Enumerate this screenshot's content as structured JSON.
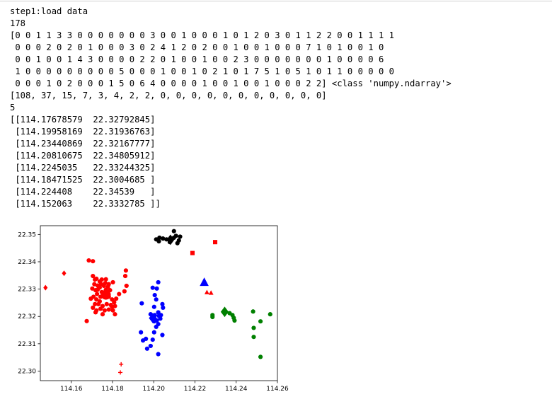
{
  "output": {
    "lines": [
      "step1:load data",
      "178",
      "[0 0 1 1 3 3 0 0 0 0 0 0 0 3 0 0 1 0 0 0 1 0 1 2 0 3 0 1 1 2 2 0 0 1 1 1 1",
      " 0 0 0 2 0 2 0 1 0 0 0 3 0 2 4 1 2 0 2 0 0 1 0 0 1 0 0 0 7 1 0 1 0 0 1 0",
      " 0 0 1 0 0 1 4 3 0 0 0 0 2 2 0 1 0 0 1 0 0 2 3 0 0 0 0 0 0 0 1 0 0 0 0 6",
      " 1 0 0 0 0 0 0 0 0 0 5 0 0 0 1 0 0 1 0 2 1 0 1 7 5 1 0 5 1 0 1 1 0 0 0 0 0",
      " 0 0 0 1 0 2 0 0 0 1 5 0 6 4 0 0 0 0 1 0 0 1 0 0 1 0 0 0 2 2] <class 'numpy.ndarray'>",
      "[108, 37, 15, 7, 3, 4, 2, 2, 0, 0, 0, 0, 0, 0, 0, 0, 0, 0, 0]",
      "5",
      "[[114.17678579  22.32792845]",
      " [114.19958169  22.31936763]",
      " [114.23440869  22.32167777]",
      " [114.20810675  22.34805912]",
      " [114.2245035   22.33244325]",
      " [114.18471525  22.3004685 ]",
      " [114.224408    22.34539   ]",
      " [114.152063    22.3332785 ]]"
    ]
  },
  "chart_data": {
    "type": "scatter",
    "title": "",
    "xlabel": "",
    "ylabel": "",
    "xlim": [
      114.145,
      114.26
    ],
    "ylim": [
      22.2965,
      22.3532
    ],
    "xticks": [
      114.16,
      114.18,
      114.2,
      114.22,
      114.24,
      114.26
    ],
    "xtick_labels": [
      "114.16",
      "114.18",
      "114.20",
      "114.22",
      "114.24",
      "114.26"
    ],
    "yticks": [
      22.3,
      22.31,
      22.32,
      22.33,
      22.34,
      22.35
    ],
    "ytick_labels": [
      "22.30",
      "22.31",
      "22.32",
      "22.33",
      "22.34",
      "22.35"
    ],
    "grid": false,
    "legend": "none",
    "series": [
      {
        "color": "#ff0000",
        "marker": "circle",
        "points": [
          [
            114.1685,
            22.3405
          ],
          [
            114.1705,
            22.3402
          ],
          [
            114.1675,
            22.3183
          ],
          [
            114.1705,
            22.3348
          ],
          [
            114.1722,
            22.3338
          ],
          [
            114.1738,
            22.3328
          ],
          [
            114.1748,
            22.3335
          ],
          [
            114.1768,
            22.3336
          ],
          [
            114.1765,
            22.3322
          ],
          [
            114.1728,
            22.3313
          ],
          [
            114.1712,
            22.3318
          ],
          [
            114.1702,
            22.3302
          ],
          [
            114.1718,
            22.3296
          ],
          [
            114.1738,
            22.3306
          ],
          [
            114.1758,
            22.3312
          ],
          [
            114.1778,
            22.3309
          ],
          [
            114.1788,
            22.3296
          ],
          [
            114.1772,
            22.3289
          ],
          [
            114.1748,
            22.3289
          ],
          [
            114.1725,
            22.3282
          ],
          [
            114.1708,
            22.3272
          ],
          [
            114.1722,
            22.3262
          ],
          [
            114.1742,
            22.3272
          ],
          [
            114.1762,
            22.3279
          ],
          [
            114.1782,
            22.3272
          ],
          [
            114.1798,
            22.3262
          ],
          [
            114.1808,
            22.3252
          ],
          [
            114.1792,
            22.3242
          ],
          [
            114.1772,
            22.3245
          ],
          [
            114.1752,
            22.3238
          ],
          [
            114.1732,
            22.3245
          ],
          [
            114.1715,
            22.3245
          ],
          [
            114.1705,
            22.3232
          ],
          [
            114.1722,
            22.3222
          ],
          [
            114.1742,
            22.3228
          ],
          [
            114.1762,
            22.3222
          ],
          [
            114.1782,
            22.3225
          ],
          [
            114.1802,
            22.3222
          ],
          [
            114.1812,
            22.3238
          ],
          [
            114.1818,
            22.3265
          ],
          [
            114.1832,
            22.3282
          ],
          [
            114.1858,
            22.3292
          ],
          [
            114.1868,
            22.3312
          ],
          [
            114.1862,
            22.3348
          ],
          [
            114.1865,
            22.3368
          ],
          [
            114.1802,
            22.3325
          ],
          [
            114.1715,
            22.3335
          ],
          [
            114.1738,
            22.3255
          ],
          [
            114.1798,
            22.3235
          ],
          [
            114.1812,
            22.3208
          ],
          [
            114.1752,
            22.3208
          ],
          [
            114.1718,
            22.3215
          ],
          [
            114.1695,
            22.3265
          ],
          [
            114.1768,
            22.3298
          ],
          [
            114.1728,
            22.3298
          ],
          [
            114.1782,
            22.3318
          ],
          [
            114.1745,
            22.3318
          ]
        ]
      },
      {
        "color": "#0000ff",
        "marker": "circle",
        "points": [
          [
            114.1995,
            22.3305
          ],
          [
            114.2015,
            22.3302
          ],
          [
            114.2022,
            22.3325
          ],
          [
            114.2005,
            22.3278
          ],
          [
            114.2012,
            22.3262
          ],
          [
            114.2002,
            22.3235
          ],
          [
            114.2042,
            22.3245
          ],
          [
            114.2045,
            22.3232
          ],
          [
            114.1942,
            22.3248
          ],
          [
            114.2022,
            22.3215
          ],
          [
            114.2005,
            22.3205
          ],
          [
            114.1992,
            22.3195
          ],
          [
            114.2015,
            22.3185
          ],
          [
            114.2032,
            22.3192
          ],
          [
            114.2025,
            22.3202
          ],
          [
            114.2002,
            22.3182
          ],
          [
            114.2022,
            22.3172
          ],
          [
            114.2012,
            22.3162
          ],
          [
            114.2002,
            22.3198
          ],
          [
            114.2035,
            22.3205
          ],
          [
            114.1985,
            22.3208
          ],
          [
            114.1938,
            22.3142
          ],
          [
            114.2002,
            22.3142
          ],
          [
            114.1962,
            22.3118
          ],
          [
            114.1995,
            22.3115
          ],
          [
            114.1948,
            22.3112
          ],
          [
            114.1985,
            22.3092
          ],
          [
            114.1968,
            22.3082
          ],
          [
            114.2042,
            22.3132
          ],
          [
            114.2022,
            22.3062
          ]
        ]
      },
      {
        "color": "#008000",
        "marker": "circle",
        "points": [
          [
            114.2285,
            22.3205
          ],
          [
            114.2285,
            22.3198
          ],
          [
            114.2382,
            22.3205
          ],
          [
            114.2388,
            22.3195
          ],
          [
            114.2392,
            22.3185
          ],
          [
            114.2368,
            22.3212
          ],
          [
            114.2482,
            22.3218
          ],
          [
            114.2518,
            22.3182
          ],
          [
            114.2565,
            22.3208
          ],
          [
            114.2485,
            22.3158
          ],
          [
            114.2485,
            22.3125
          ],
          [
            114.2518,
            22.3052
          ]
        ]
      },
      {
        "color": "#000000",
        "marker": "circle",
        "points": [
          [
            114.2012,
            22.3482
          ],
          [
            114.2028,
            22.3488
          ],
          [
            114.2045,
            22.3485
          ],
          [
            114.2025,
            22.3475
          ],
          [
            114.2098,
            22.3488
          ],
          [
            114.2108,
            22.3495
          ],
          [
            114.2122,
            22.3478
          ],
          [
            114.2128,
            22.3492
          ],
          [
            114.2098,
            22.3512
          ],
          [
            114.2115,
            22.3468
          ],
          [
            114.2078,
            22.3472
          ],
          [
            114.2062,
            22.3482
          ]
        ]
      }
    ],
    "extra_markers": [
      {
        "color": "#ff0000",
        "marker": "diamond",
        "size": "small",
        "points": [
          [
            114.1565,
            22.3358
          ],
          [
            114.1475,
            22.3305
          ]
        ]
      },
      {
        "color": "#ff0000",
        "marker": "plus",
        "size": "small",
        "points": [
          [
            114.1842,
            22.3025
          ],
          [
            114.1838,
            22.2995
          ]
        ]
      },
      {
        "color": "#ff0000",
        "marker": "square",
        "size": "small",
        "points": [
          [
            114.2188,
            22.3432
          ],
          [
            114.2298,
            22.3472
          ]
        ]
      },
      {
        "color": "#ff0000",
        "marker": "triangle",
        "size": "small",
        "points": [
          [
            114.2258,
            22.3288
          ],
          [
            114.2278,
            22.3286
          ]
        ]
      }
    ],
    "centers": [
      {
        "color": "#ff0000",
        "marker": "circle",
        "x": 114.17678579,
        "y": 22.32792845
      },
      {
        "color": "#0000ff",
        "marker": "diamond",
        "x": 114.19958169,
        "y": 22.31936763
      },
      {
        "color": "#008000",
        "marker": "diamond",
        "x": 114.23440869,
        "y": 22.32167777
      },
      {
        "color": "#000000",
        "marker": "diamond",
        "x": 114.20810675,
        "y": 22.34805912
      },
      {
        "color": "#0000ff",
        "marker": "triangle",
        "x": 114.2245035,
        "y": 22.33244325
      }
    ]
  }
}
